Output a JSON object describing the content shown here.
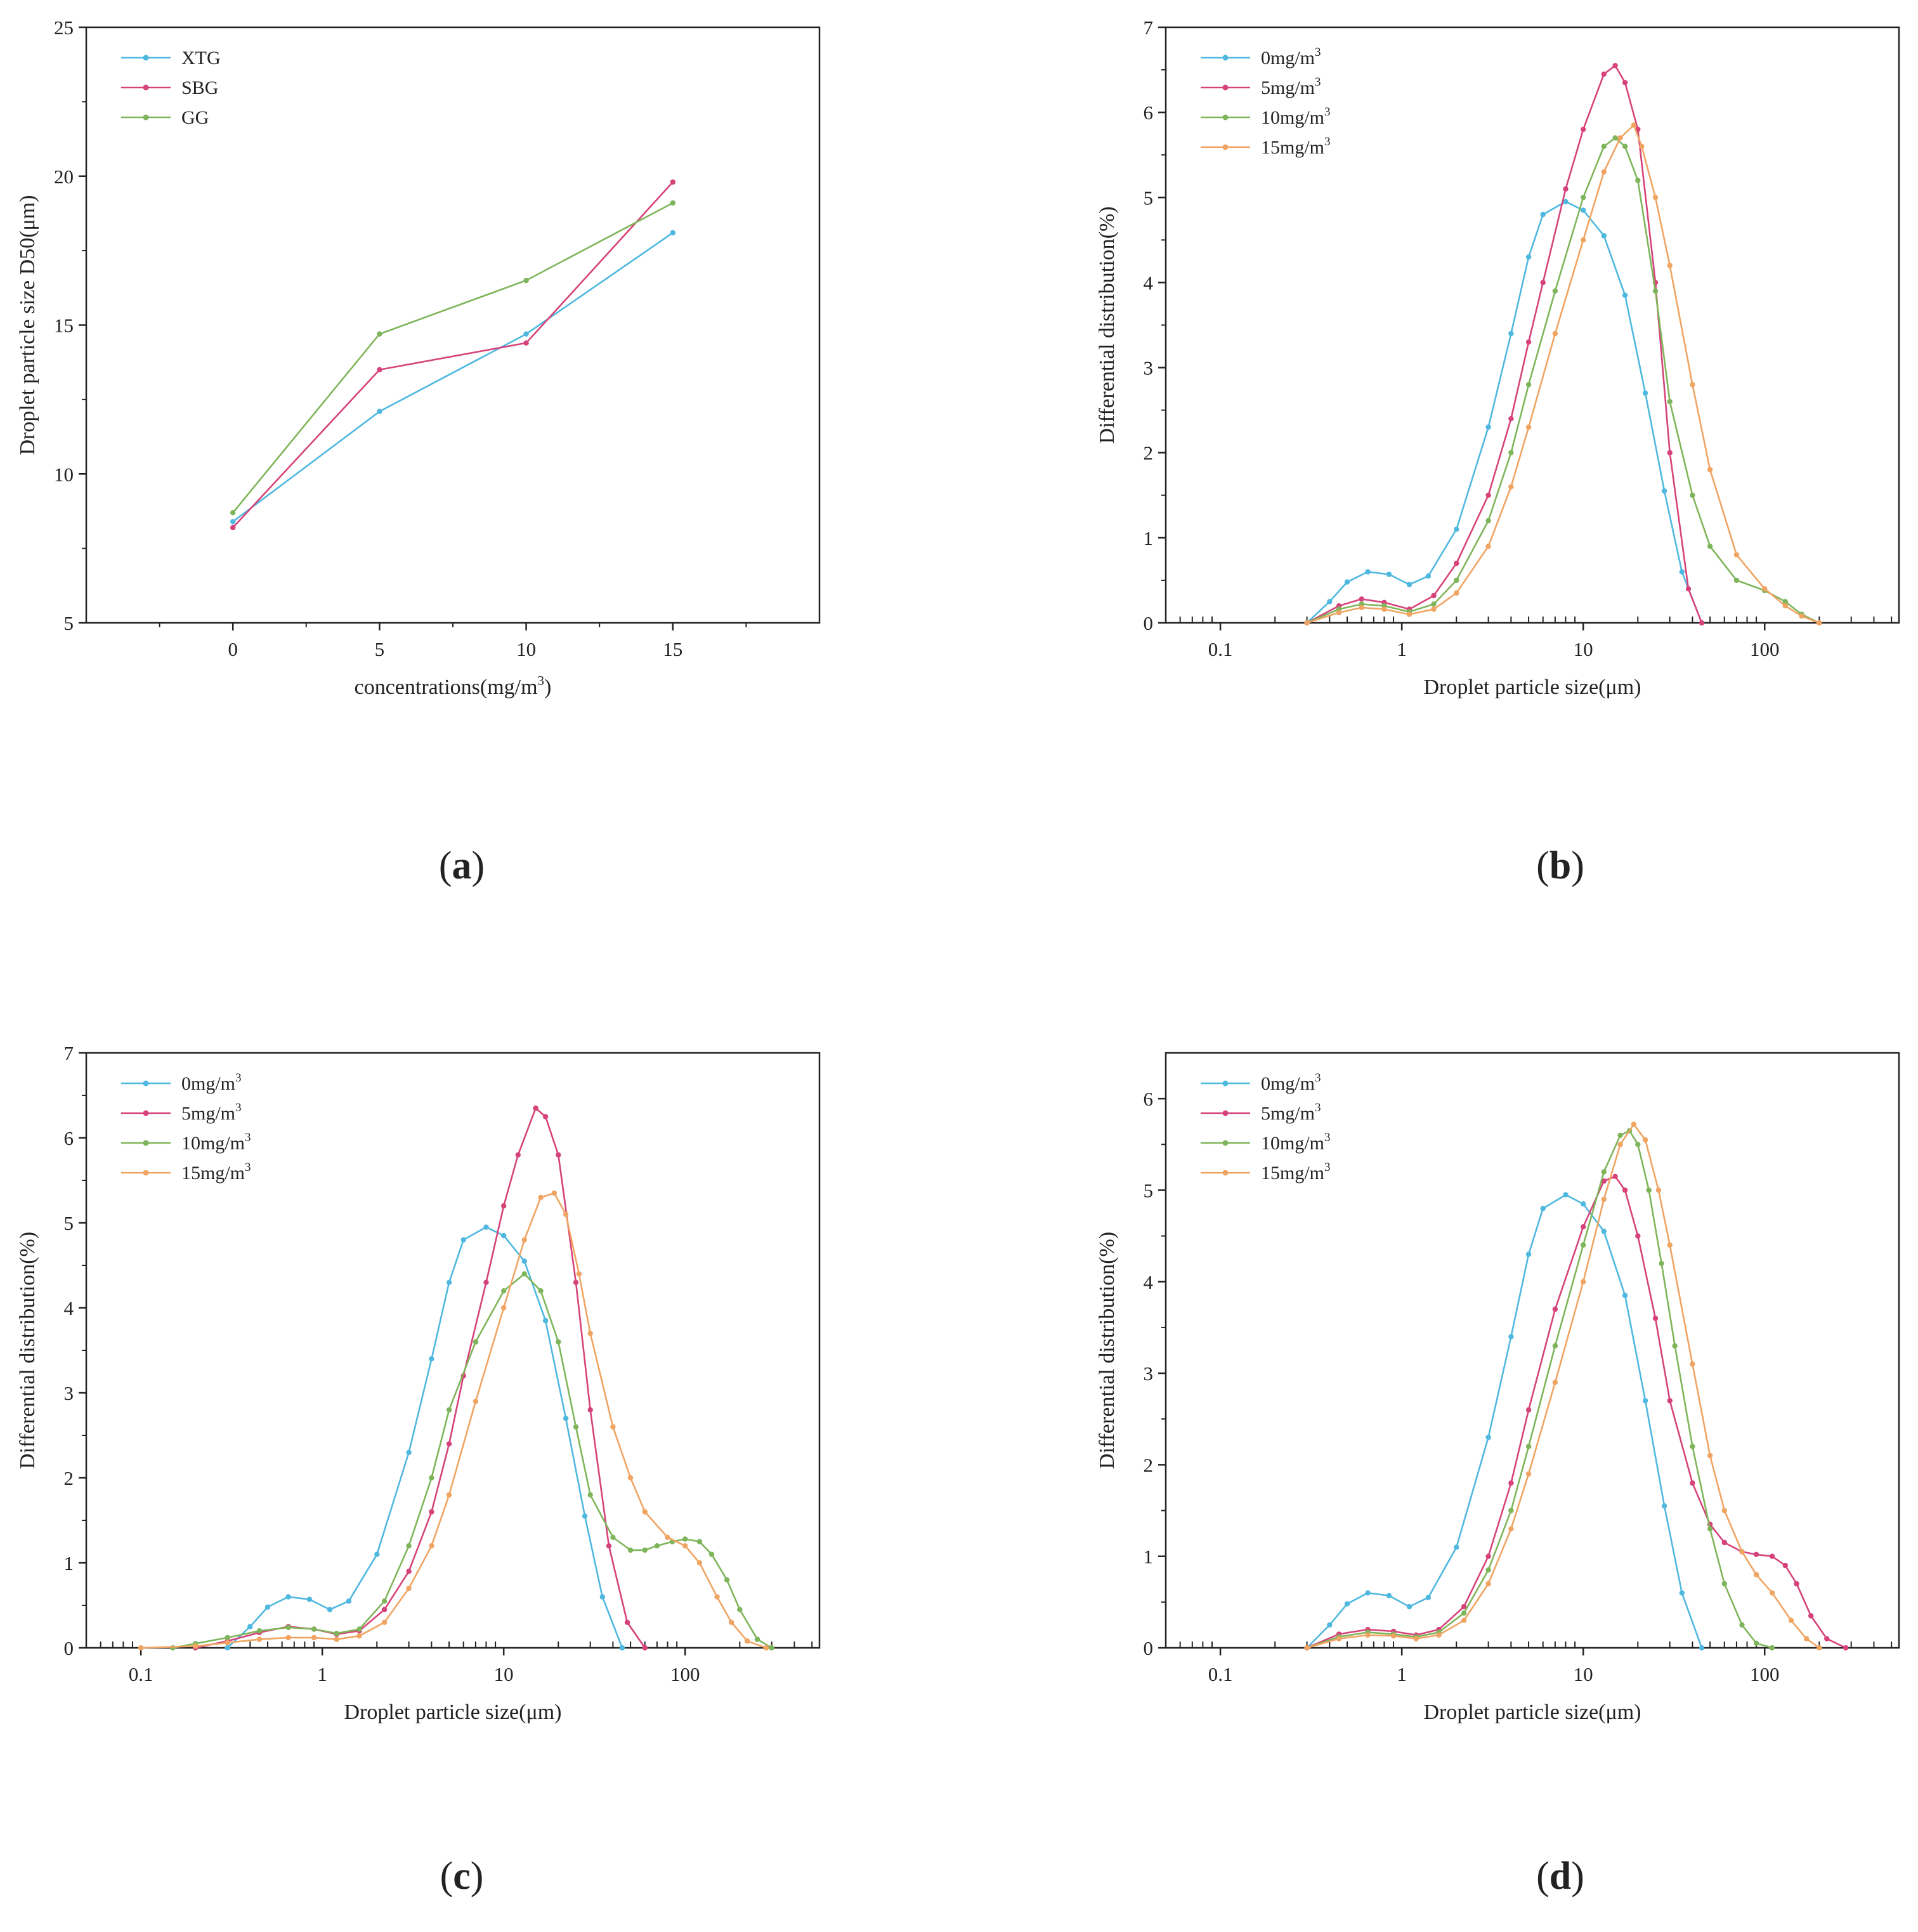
{
  "chart_data": [
    {
      "id": "a",
      "caption": {
        "open": "(",
        "letter": "a",
        "close": ")"
      },
      "type": "line",
      "xscale": "linear",
      "xlabel": "concentrations(mg/m",
      "xlabel_sup": "3",
      "xlabel_tail": ")",
      "ylabel": "Droplet particle size D50(μm)",
      "xlim": [
        -5,
        20
      ],
      "ylim": [
        5,
        25
      ],
      "xticks": [
        0,
        5,
        10,
        15
      ],
      "yticks": [
        5,
        10,
        15,
        20,
        25
      ],
      "grid": false,
      "legend": "top-left",
      "series": [
        {
          "name": "XTG",
          "color": "#4fb8df",
          "x": [
            0,
            5,
            10,
            15
          ],
          "y": [
            8.4,
            12.1,
            14.7,
            18.1
          ]
        },
        {
          "name": "SBG",
          "color": "#d6427a",
          "x": [
            0,
            5,
            10,
            15
          ],
          "y": [
            8.2,
            13.5,
            14.4,
            19.8
          ]
        },
        {
          "name": "GG",
          "color": "#7fb55a",
          "x": [
            0,
            5,
            10,
            15
          ],
          "y": [
            8.7,
            14.7,
            16.5,
            19.1
          ]
        }
      ]
    },
    {
      "id": "b",
      "caption": {
        "open": "(",
        "letter": "b",
        "close": ")"
      },
      "type": "line",
      "xscale": "log",
      "xlabel": "Droplet particle size(μm)",
      "ylabel": "Differential distribution(%)",
      "xlim": [
        0.05,
        550
      ],
      "ylim": [
        0,
        7
      ],
      "xticks": [
        0.1,
        1,
        10,
        100
      ],
      "xticklabels": [
        "0.1",
        "1",
        "10",
        "100"
      ],
      "yticks": [
        0,
        1,
        2,
        3,
        4,
        5,
        6,
        7
      ],
      "grid": false,
      "legend": "top-left",
      "series": [
        {
          "name": "0mg/m",
          "sup": "3",
          "color": "#4fb8df",
          "x": [
            0.3,
            0.4,
            0.5,
            0.65,
            0.85,
            1.1,
            1.4,
            2,
            3,
            4,
            5,
            6,
            8,
            10,
            13,
            17,
            22,
            28,
            35,
            45
          ],
          "y": [
            0,
            0.25,
            0.48,
            0.6,
            0.57,
            0.45,
            0.55,
            1.1,
            2.3,
            3.4,
            4.3,
            4.8,
            4.95,
            4.85,
            4.55,
            3.85,
            2.7,
            1.55,
            0.6,
            0
          ]
        },
        {
          "name": "5mg/m",
          "sup": "3",
          "color": "#d6427a",
          "x": [
            0.3,
            0.45,
            0.6,
            0.8,
            1.1,
            1.5,
            2,
            3,
            4,
            5,
            6,
            8,
            10,
            13,
            15,
            17,
            20,
            25,
            30,
            38,
            45
          ],
          "y": [
            0,
            0.2,
            0.28,
            0.24,
            0.16,
            0.32,
            0.7,
            1.5,
            2.4,
            3.3,
            4.0,
            5.1,
            5.8,
            6.45,
            6.55,
            6.35,
            5.8,
            4.0,
            2.0,
            0.4,
            0
          ]
        },
        {
          "name": "10mg/m",
          "sup": "3",
          "color": "#7fb55a",
          "x": [
            0.3,
            0.45,
            0.6,
            0.8,
            1.1,
            1.5,
            2,
            3,
            4,
            5,
            7,
            10,
            13,
            15,
            17,
            20,
            25,
            30,
            40,
            50,
            70,
            100,
            130,
            160,
            200
          ],
          "y": [
            0,
            0.16,
            0.22,
            0.2,
            0.13,
            0.22,
            0.5,
            1.2,
            2.0,
            2.8,
            3.9,
            5.0,
            5.6,
            5.7,
            5.6,
            5.2,
            3.9,
            2.6,
            1.5,
            0.9,
            0.5,
            0.38,
            0.25,
            0.1,
            0
          ]
        },
        {
          "name": "15mg/m",
          "sup": "3",
          "color": "#f0a462",
          "x": [
            0.3,
            0.45,
            0.6,
            0.8,
            1.1,
            1.5,
            2,
            3,
            4,
            5,
            7,
            10,
            13,
            16,
            19,
            21,
            25,
            30,
            40,
            50,
            70,
            100,
            130,
            160,
            200
          ],
          "y": [
            0,
            0.12,
            0.18,
            0.16,
            0.1,
            0.16,
            0.35,
            0.9,
            1.6,
            2.3,
            3.4,
            4.5,
            5.3,
            5.7,
            5.85,
            5.6,
            5.0,
            4.2,
            2.8,
            1.8,
            0.8,
            0.4,
            0.2,
            0.08,
            0
          ]
        }
      ]
    },
    {
      "id": "c",
      "caption": {
        "open": "(",
        "letter": "c",
        "close": ")"
      },
      "type": "line",
      "xscale": "log",
      "xlabel": "Droplet particle size(μm)",
      "ylabel": "Differential distribution(%)",
      "xlim": [
        0.05,
        550
      ],
      "ylim": [
        0,
        7
      ],
      "xticks": [
        0.1,
        1,
        10,
        100
      ],
      "xticklabels": [
        "0.1",
        "1",
        "10",
        "100"
      ],
      "yticks": [
        0,
        1,
        2,
        3,
        4,
        5,
        6,
        7
      ],
      "grid": false,
      "legend": "top-left",
      "series": [
        {
          "name": "0mg/m",
          "sup": "3",
          "color": "#4fb8df",
          "x": [
            0.3,
            0.4,
            0.5,
            0.65,
            0.85,
            1.1,
            1.4,
            2,
            3,
            4,
            5,
            6,
            8,
            10,
            13,
            17,
            22,
            28,
            35,
            45
          ],
          "y": [
            0,
            0.25,
            0.48,
            0.6,
            0.57,
            0.45,
            0.55,
            1.1,
            2.3,
            3.4,
            4.3,
            4.8,
            4.95,
            4.85,
            4.55,
            3.85,
            2.7,
            1.55,
            0.6,
            0
          ]
        },
        {
          "name": "5mg/m",
          "sup": "3",
          "color": "#d6427a",
          "x": [
            0.2,
            0.3,
            0.45,
            0.65,
            0.9,
            1.2,
            1.6,
            2.2,
            3,
            4,
            5,
            6,
            8,
            10,
            12,
            15,
            17,
            20,
            25,
            30,
            38,
            48,
            60
          ],
          "y": [
            0,
            0.08,
            0.18,
            0.25,
            0.22,
            0.16,
            0.2,
            0.45,
            0.9,
            1.6,
            2.4,
            3.2,
            4.3,
            5.2,
            5.8,
            6.35,
            6.25,
            5.8,
            4.3,
            2.8,
            1.2,
            0.3,
            0
          ]
        },
        {
          "name": "10mg/m",
          "sup": "3",
          "color": "#7fb55a",
          "x": [
            0.15,
            0.2,
            0.3,
            0.45,
            0.65,
            0.9,
            1.2,
            1.6,
            2.2,
            3,
            4,
            5,
            7,
            10,
            13,
            16,
            20,
            25,
            30,
            40,
            50,
            60,
            70,
            85,
            100,
            120,
            140,
            170,
            200,
            250,
            300
          ],
          "y": [
            0,
            0.05,
            0.12,
            0.2,
            0.24,
            0.22,
            0.17,
            0.22,
            0.55,
            1.2,
            2.0,
            2.8,
            3.6,
            4.2,
            4.4,
            4.2,
            3.6,
            2.6,
            1.8,
            1.3,
            1.15,
            1.15,
            1.2,
            1.25,
            1.28,
            1.25,
            1.1,
            0.8,
            0.45,
            0.1,
            0
          ]
        },
        {
          "name": "15mg/m",
          "sup": "3",
          "color": "#f0a462",
          "x": [
            0.1,
            0.2,
            0.3,
            0.45,
            0.65,
            0.9,
            1.2,
            1.6,
            2.2,
            3,
            4,
            5,
            7,
            10,
            13,
            16,
            19,
            22,
            26,
            30,
            40,
            50,
            60,
            80,
            100,
            120,
            150,
            180,
            220,
            280
          ],
          "y": [
            0,
            0.02,
            0.06,
            0.1,
            0.12,
            0.12,
            0.1,
            0.14,
            0.3,
            0.7,
            1.2,
            1.8,
            2.9,
            4.0,
            4.8,
            5.3,
            5.35,
            5.1,
            4.4,
            3.7,
            2.6,
            2.0,
            1.6,
            1.3,
            1.2,
            1.0,
            0.6,
            0.3,
            0.08,
            0
          ]
        }
      ]
    },
    {
      "id": "d",
      "caption": {
        "open": "(",
        "letter": "d",
        "close": ")"
      },
      "type": "line",
      "xscale": "log",
      "xlabel": "Droplet particle size(μm)",
      "ylabel": "Differential distribution(%)",
      "xlim": [
        0.05,
        550
      ],
      "ylim": [
        0,
        6.5
      ],
      "xticks": [
        0.1,
        1,
        10,
        100
      ],
      "xticklabels": [
        "0.1",
        "1",
        "10",
        "100"
      ],
      "yticks": [
        0,
        1,
        2,
        3,
        4,
        5,
        6
      ],
      "grid": false,
      "legend": "top-left",
      "series": [
        {
          "name": "0mg/m",
          "sup": "3",
          "color": "#4fb8df",
          "x": [
            0.3,
            0.4,
            0.5,
            0.65,
            0.85,
            1.1,
            1.4,
            2,
            3,
            4,
            5,
            6,
            8,
            10,
            13,
            17,
            22,
            28,
            35,
            45
          ],
          "y": [
            0,
            0.25,
            0.48,
            0.6,
            0.57,
            0.45,
            0.55,
            1.1,
            2.3,
            3.4,
            4.3,
            4.8,
            4.95,
            4.85,
            4.55,
            3.85,
            2.7,
            1.55,
            0.6,
            0
          ]
        },
        {
          "name": "5mg/m",
          "sup": "3",
          "color": "#d6427a",
          "x": [
            0.3,
            0.45,
            0.65,
            0.9,
            1.2,
            1.6,
            2.2,
            3,
            4,
            5,
            7,
            10,
            13,
            15,
            17,
            20,
            25,
            30,
            40,
            50,
            60,
            75,
            90,
            110,
            130,
            150,
            180,
            220,
            280
          ],
          "y": [
            0,
            0.15,
            0.2,
            0.18,
            0.14,
            0.2,
            0.45,
            1.0,
            1.8,
            2.6,
            3.7,
            4.6,
            5.1,
            5.15,
            5.0,
            4.5,
            3.6,
            2.7,
            1.8,
            1.35,
            1.15,
            1.05,
            1.02,
            1.0,
            0.9,
            0.7,
            0.35,
            0.1,
            0
          ]
        },
        {
          "name": "10mg/m",
          "sup": "3",
          "color": "#7fb55a",
          "x": [
            0.3,
            0.45,
            0.65,
            0.9,
            1.2,
            1.6,
            2.2,
            3,
            4,
            5,
            7,
            10,
            13,
            16,
            18,
            20,
            23,
            27,
            32,
            40,
            50,
            60,
            75,
            90,
            110
          ],
          "y": [
            0,
            0.12,
            0.17,
            0.15,
            0.12,
            0.17,
            0.38,
            0.85,
            1.5,
            2.2,
            3.3,
            4.4,
            5.2,
            5.6,
            5.65,
            5.5,
            5.0,
            4.2,
            3.3,
            2.2,
            1.3,
            0.7,
            0.25,
            0.05,
            0
          ]
        },
        {
          "name": "15mg/m",
          "sup": "3",
          "color": "#f0a462",
          "x": [
            0.3,
            0.45,
            0.65,
            0.9,
            1.2,
            1.6,
            2.2,
            3,
            4,
            5,
            7,
            10,
            13,
            16,
            19,
            22,
            26,
            30,
            40,
            50,
            60,
            75,
            90,
            110,
            140,
            170,
            200
          ],
          "y": [
            0,
            0.1,
            0.14,
            0.13,
            0.1,
            0.14,
            0.3,
            0.7,
            1.3,
            1.9,
            2.9,
            4.0,
            4.9,
            5.5,
            5.72,
            5.55,
            5.0,
            4.4,
            3.1,
            2.1,
            1.5,
            1.05,
            0.8,
            0.6,
            0.3,
            0.1,
            0
          ]
        }
      ]
    }
  ]
}
